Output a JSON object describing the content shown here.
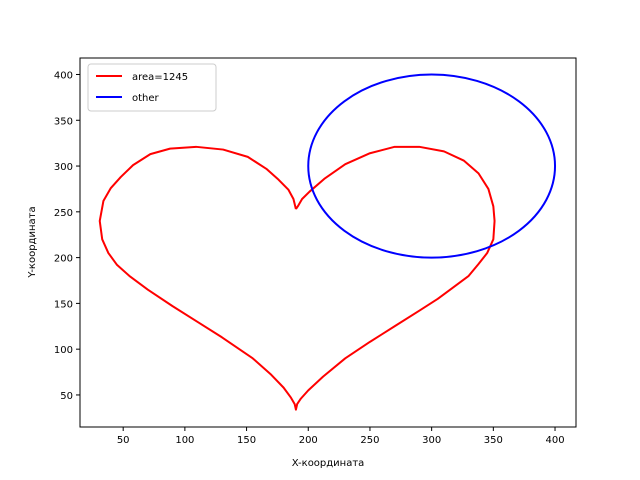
{
  "chart_data": {
    "type": "line",
    "title": "",
    "xlabel": "X-координата",
    "ylabel": "Y-координата",
    "xlim": [
      15,
      417
    ],
    "ylim": [
      15,
      418
    ],
    "xticks": [
      50,
      100,
      150,
      200,
      250,
      300,
      350,
      400
    ],
    "yticks": [
      50,
      100,
      150,
      200,
      250,
      300,
      350,
      400
    ],
    "grid": false,
    "legend_position": "top-left",
    "series": [
      {
        "name": "area=1245",
        "color": "#ff0000",
        "x": [
          190,
          188,
          184,
          176,
          166,
          151,
          131,
          109,
          88,
          72,
          58,
          48,
          40,
          34,
          31,
          33,
          38,
          45,
          55,
          70,
          90,
          110,
          130,
          155,
          170,
          180,
          186,
          189,
          190,
          191,
          194,
          200,
          212,
          230,
          250,
          270,
          290,
          305,
          318,
          330,
          338,
          345,
          350,
          351,
          350,
          346,
          338,
          326,
          310,
          290,
          270,
          250,
          230,
          213,
          201,
          195,
          192,
          190
        ],
        "y": [
          253,
          264,
          274,
          285,
          297,
          310,
          318,
          321,
          319,
          313,
          301,
          288,
          276,
          262,
          240,
          220,
          205,
          192,
          180,
          165,
          147,
          130,
          113,
          90,
          72,
          58,
          47,
          40,
          34,
          40,
          46,
          55,
          70,
          90,
          108,
          125,
          142,
          155,
          168,
          180,
          193,
          205,
          220,
          240,
          256,
          275,
          292,
          306,
          316,
          321,
          321,
          314,
          302,
          286,
          272,
          264,
          257,
          253
        ]
      },
      {
        "name": "other",
        "color": "#0000ff",
        "shape": "ellipse",
        "cx": 300,
        "cy": 300,
        "rx": 100,
        "ry": 100,
        "x": [
          400,
          350,
          300,
          250,
          200,
          250,
          300,
          350,
          400
        ],
        "y": [
          300,
          387,
          400,
          387,
          300,
          213,
          200,
          213,
          300
        ]
      }
    ]
  }
}
